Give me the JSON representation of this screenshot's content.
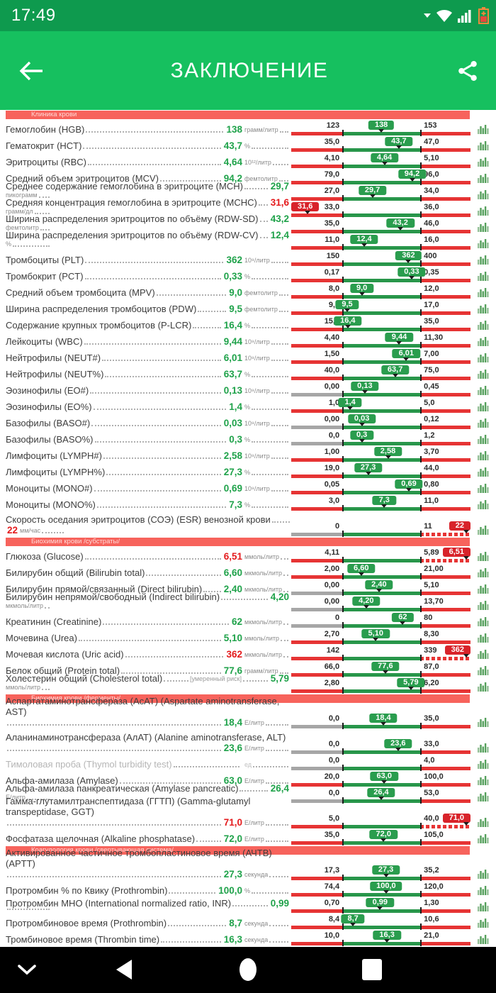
{
  "status_bar": {
    "time": "17:49"
  },
  "app_bar": {
    "title": "ЗАКЛЮЧЕНИЕ"
  },
  "colors": {
    "accent_green": "#16c05f",
    "bar_red": "#e63434",
    "bar_green": "#28964a",
    "value_green": "#1fa24a",
    "value_red": "#e41a1c",
    "section_strip": "#f7635c"
  },
  "icons": {
    "header_left": "back-arrow-icon",
    "header_right": "share-icon",
    "row_right": "histogram-icon",
    "nav": [
      "chevron-down-icon",
      "back-triangle-icon",
      "home-circle-icon",
      "recents-square-icon"
    ]
  },
  "sections": [
    {
      "title": "Клиника крови",
      "rows": [
        {
          "name": "Гемоглобин (HGB)",
          "value": "138",
          "unit": "грамм/литр",
          "status": "normal",
          "min": "123",
          "max": "153"
        },
        {
          "name": "Гематокрит (HCT)",
          "value": "43,7",
          "unit": "%",
          "status": "normal",
          "min": "35,0",
          "max": "47,0"
        },
        {
          "name": "Эритроциты (RBC)",
          "value": "4,64",
          "unit": "10¹²/литр",
          "status": "normal",
          "min": "4,10",
          "max": "5,10"
        },
        {
          "name": "Средний объем эритроцитов (MCV)",
          "value": "94,2",
          "unit": "фемтолитр",
          "status": "normal",
          "min": "79,0",
          "max": "96,0"
        },
        {
          "name": "Среднее содержание гемоглобина в эритроците (MCH)",
          "value": "29,7",
          "unit": "пикограмм",
          "status": "normal",
          "min": "27,0",
          "max": "34,0"
        },
        {
          "name": "Средняя концентрация гемоглобина в эритроците (MCHC)",
          "value": "31,6",
          "unit": "грамм/дл",
          "status": "low",
          "min": "33,0",
          "max": "36,0"
        },
        {
          "name": "Ширина распределения эритроцитов по объёму (RDW-SD)",
          "value": "43,2",
          "unit": "фемтолитр",
          "status": "normal",
          "min": "35,0",
          "max": "46,0"
        },
        {
          "name": "Ширина распределения эритроцитов по объёму (RDW-CV)",
          "value": "12,4",
          "unit": "%",
          "status": "normal",
          "min": "11,0",
          "max": "16,0"
        },
        {
          "name": "Тромбоциты (PLT)",
          "value": "362",
          "unit": "10⁹/литр",
          "status": "normal",
          "min": "150",
          "max": "400"
        },
        {
          "name": "Тромбокрит (PCT)",
          "value": "0,33",
          "unit": "%",
          "status": "normal",
          "min": "0,17",
          "max": "0,35"
        },
        {
          "name": "Средний объем тромбоцита (MPV)",
          "value": "9,0",
          "unit": "фемтолитр",
          "status": "normal",
          "min": "8,0",
          "max": "12,0"
        },
        {
          "name": "Ширина распределения тромбоцитов (PDW)",
          "value": "9,5",
          "unit": "фемтолитр",
          "status": "normal",
          "min": "9,0",
          "max": "17,0"
        },
        {
          "name": "Содержание крупных тромбоцитов (P-LCR)",
          "value": "16,4",
          "unit": "%",
          "status": "normal",
          "min": "15,0",
          "max": "35,0"
        },
        {
          "name": "Лейкоциты (WBC)",
          "value": "9,44",
          "unit": "10⁹/литр",
          "status": "normal",
          "min": "4,40",
          "max": "11,30"
        },
        {
          "name": "Нейтрофилы (NEUT#)",
          "value": "6,01",
          "unit": "10⁹/литр",
          "status": "normal",
          "min": "1,50",
          "max": "7,00"
        },
        {
          "name": "Нейтрофилы (NEUT%)",
          "value": "63,7",
          "unit": "%",
          "status": "normal",
          "min": "40,0",
          "max": "75,0"
        },
        {
          "name": "Эозинофилы (EO#)",
          "value": "0,13",
          "unit": "10⁹/литр",
          "status": "normal",
          "min": "0,00",
          "max": "0,45"
        },
        {
          "name": "Эозинофилы (EO%)",
          "value": "1,4",
          "unit": "%",
          "status": "normal",
          "min": "1,0",
          "max": "5,0"
        },
        {
          "name": "Базофилы (BASO#)",
          "value": "0,03",
          "unit": "10⁹/литр",
          "status": "normal",
          "min": "0,00",
          "max": "0,12"
        },
        {
          "name": "Базофилы (BASO%)",
          "value": "0,3",
          "unit": "%",
          "status": "normal",
          "min": "0,0",
          "max": "1,2"
        },
        {
          "name": "Лимфоциты (LYMPH#)",
          "value": "2,58",
          "unit": "10⁹/литр",
          "status": "normal",
          "min": "1,00",
          "max": "3,70"
        },
        {
          "name": "Лимфоциты (LYMPH%)",
          "value": "27,3",
          "unit": "%",
          "status": "normal",
          "min": "19,0",
          "max": "44,0"
        },
        {
          "name": "Моноциты (MONO#)",
          "value": "0,69",
          "unit": "10⁹/литр",
          "status": "normal",
          "min": "0,05",
          "max": "0,80"
        },
        {
          "name": "Моноциты (MONO%)",
          "value": "7,3",
          "unit": "%",
          "status": "normal",
          "min": "3,0",
          "max": "11,0"
        },
        {
          "name": "Скорость оседания эритроцитов (СОЭ) (ESR) венозной крови",
          "value": "22",
          "unit": "мм/час",
          "status": "high",
          "min": "0",
          "max": "11",
          "tall": true
        }
      ]
    },
    {
      "title": "Биохимия крови /субстраты/",
      "rows": [
        {
          "name": "Глюкоза (Glucose)",
          "value": "6,51",
          "unit": "ммоль/литр",
          "status": "high",
          "min": "4,11",
          "max": "5,89"
        },
        {
          "name": "Билирубин общий (Bilirubin total)",
          "value": "6,60",
          "unit": "мкмоль/литр",
          "status": "normal",
          "min": "2,00",
          "max": "21,00"
        },
        {
          "name": "Билирубин прямой/связанный (Direct bilirubin)",
          "value": "2,40",
          "unit": "мкмоль/литр",
          "status": "normal",
          "min": "0,00",
          "max": "5,10"
        },
        {
          "name": "Билирубин непрямой/свободный (Indirect bilirubin)",
          "value": "4,20",
          "unit": "мкмоль/литр",
          "status": "normal",
          "min": "0,00",
          "max": "13,70"
        },
        {
          "name": "Креатинин (Creatinine)",
          "value": "62",
          "unit": "мкмоль/литр",
          "status": "normal",
          "min": "0",
          "max": "80"
        },
        {
          "name": "Мочевина (Urea)",
          "value": "5,10",
          "unit": "ммоль/литр",
          "status": "normal",
          "min": "2,70",
          "max": "8,30"
        },
        {
          "name": "Мочевая кислота (Uric acid)",
          "value": "362",
          "unit": "мкмоль/литр",
          "status": "high",
          "min": "142",
          "max": "339"
        },
        {
          "name": "Белок общий (Protein total)",
          "value": "77,6",
          "unit": "грамм/литр",
          "status": "normal",
          "min": "66,0",
          "max": "87,0"
        },
        {
          "name": "Холестерин общий (Cholesterol total)",
          "note": "[умеренный риск]",
          "value": "5,79",
          "unit": "ммоль/литр",
          "status": "normal",
          "min": "2,80",
          "max": "6,20"
        }
      ]
    },
    {
      "title": "Биохимия крови /ферменты/",
      "rows": [
        {
          "name": "Аспартатаминотрансфераза (АсАТ) (Aspartate aminotransferase, AST)",
          "value": "18,4",
          "unit": "Е/литр",
          "status": "normal",
          "min": "0,0",
          "max": "35,0",
          "tall": true
        },
        {
          "name": "Аланинаминотрансфераза (АлАТ) (Alanine aminotransferase, ALT)",
          "value": "23,6",
          "unit": "Е/литр",
          "status": "normal",
          "min": "0,0",
          "max": "33,0",
          "tall": true
        },
        {
          "name": "Тимоловая проба (Thymol turbidity test)",
          "value": "",
          "unit": "ед",
          "status": "empty",
          "min": "0,0",
          "max": "4,0"
        },
        {
          "name": "Альфа-амилаза (Amylase)",
          "value": "63,0",
          "unit": "Е/литр",
          "status": "normal",
          "min": "20,0",
          "max": "100,0"
        },
        {
          "name": "Альфа-амилаза панкреатическая (Amylase pancreatic)",
          "value": "26,4",
          "unit": "Е/литр",
          "status": "normal",
          "min": "0,0",
          "max": "53,0"
        },
        {
          "name": "Гамма-глутамилтранспептидаза (ГГТП) (Gamma-glutamyl transpeptidase, GGT)",
          "value": "71,0",
          "unit": "Е/литр",
          "status": "high",
          "min": "5,0",
          "max": "40,0",
          "tall": true
        },
        {
          "name": "Фосфатаза щелочная (Alkaline phosphatase)",
          "value": "72,0",
          "unit": "Е/литр",
          "status": "normal",
          "min": "35,0",
          "max": "105,0"
        }
      ]
    },
    {
      "title": "Коагулология крови /свертывающая система/",
      "rows": [
        {
          "name": "Активированное частичное тромбопластиновое время (АЧТВ) (APTT)",
          "value": "27,3",
          "unit": "секунда",
          "status": "normal",
          "min": "17,3",
          "max": "35,2",
          "tall": true
        },
        {
          "name": "Протромбин % по Квику (Prothrombin)",
          "value": "100,0",
          "unit": "%",
          "status": "normal",
          "min": "74,4",
          "max": "120,0"
        },
        {
          "name": "Протромбин МНО (International normalized ratio, INR)",
          "value": "0,99",
          "unit": "",
          "status": "normal",
          "min": "0,70",
          "max": "1,30"
        },
        {
          "name": "Протромбиновое время (Prothrombin)",
          "value": "8,7",
          "unit": "секунда",
          "status": "normal",
          "min": "8,4",
          "max": "10,6"
        },
        {
          "name": "Тромбиновое время (Thrombin time)",
          "value": "16,3",
          "unit": "секунда",
          "status": "normal",
          "min": "10,0",
          "max": "21,0"
        }
      ]
    }
  ]
}
